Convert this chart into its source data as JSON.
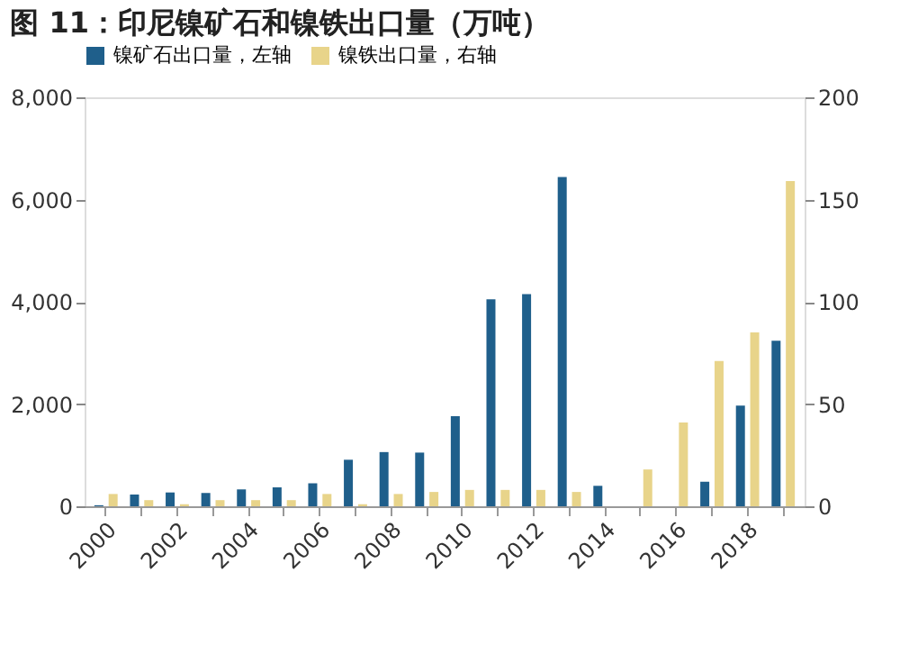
{
  "chart_data": {
    "type": "bar",
    "title": "图 11：印尼镍矿石和镍铁出口量（万吨）",
    "categories": [
      "2000",
      null,
      "2002",
      null,
      "2004",
      null,
      "2006",
      null,
      "2008",
      null,
      "2010",
      null,
      "2012",
      null,
      "2014",
      null,
      "2016",
      null,
      "2018",
      null
    ],
    "series": [
      {
        "name": "镍矿石出口量，左轴",
        "color": "#1f5f8b",
        "values": [
          20,
          230,
          270,
          260,
          330,
          370,
          450,
          910,
          1060,
          1050,
          1760,
          4050,
          4150,
          6440,
          400,
          0,
          0,
          480,
          1970,
          3240
        ]
      },
      {
        "name": "镍铁出口量，右轴",
        "color": "#e8d48a",
        "axis": "y2",
        "values": [
          6,
          3,
          1,
          3,
          3,
          3,
          6,
          1,
          6,
          7,
          8,
          8,
          8,
          7,
          0,
          18,
          41,
          71,
          85,
          159
        ]
      }
    ],
    "ylim": [
      0,
      8000
    ],
    "yticks": [
      0,
      {
        "value": 2000,
        "label": "2,000"
      },
      {
        "value": 4000,
        "label": "4,000"
      },
      {
        "value": 6000,
        "label": "6,000"
      },
      {
        "value": 8000,
        "label": "8,000"
      }
    ],
    "y2lim": [
      0,
      200
    ],
    "y2ticks": [
      0,
      50,
      100,
      150,
      200
    ],
    "legend": "top",
    "grid": false
  }
}
